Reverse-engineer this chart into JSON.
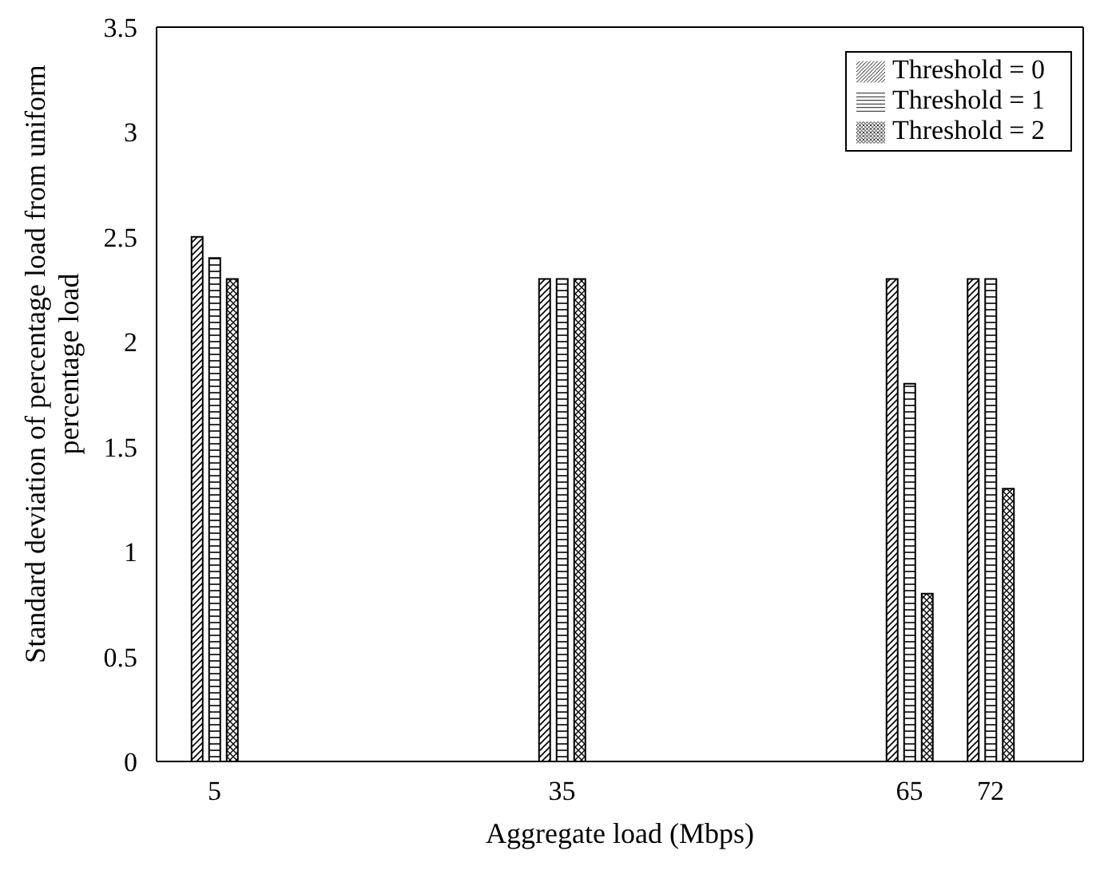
{
  "chart_data": {
    "type": "bar",
    "xlabel": "Aggregate load (Mbps)",
    "ylabel": "Standard deviation of percentage load from uniform percentage load",
    "x": [
      5,
      35,
      65,
      72
    ],
    "xlim": [
      0,
      80
    ],
    "xticks": [
      5,
      35,
      65,
      72
    ],
    "ylim": [
      0,
      3.5
    ],
    "yticks": [
      0,
      0.5,
      1,
      1.5,
      2,
      2.5,
      3,
      3.5
    ],
    "series": [
      {
        "name": "Threshold = 0",
        "color": "#000000",
        "values": [
          2.5,
          2.3,
          2.3,
          2.3
        ]
      },
      {
        "name": "Threshold = 1",
        "color": "#000000",
        "values": [
          2.4,
          2.3,
          1.8,
          2.3
        ]
      },
      {
        "name": "Threshold = 2",
        "color": "#000000",
        "values": [
          2.3,
          2.3,
          0.8,
          1.3
        ]
      }
    ],
    "legend": "top right",
    "grid": false
  }
}
